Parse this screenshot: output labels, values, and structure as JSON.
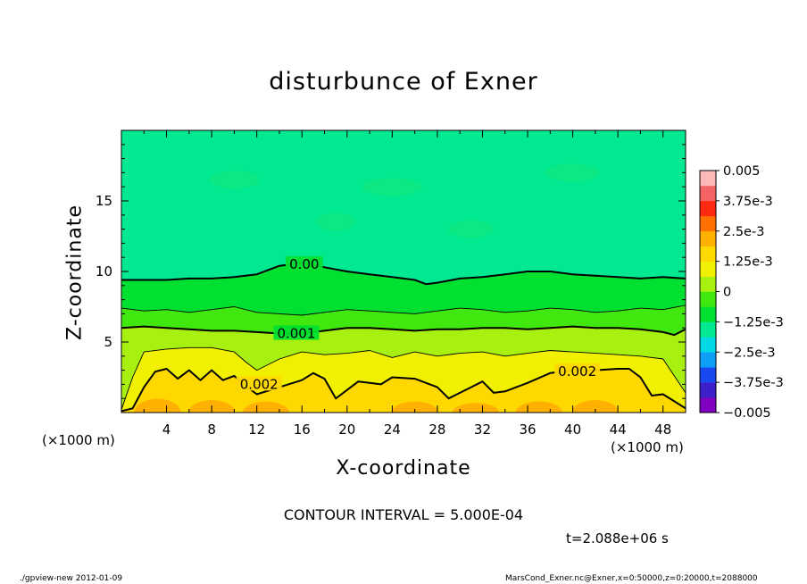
{
  "title": "disturbunce of Exner",
  "xlabel": "X-coordinate",
  "ylabel": "Z-coordinate",
  "x_unit_left": "(×1000 m)",
  "x_unit_right": "(×1000 m)",
  "contour_interval": "CONTOUR INTERVAL = 5.000E-04",
  "time_label": "t=2.088e+06 s",
  "footer_left": "./gpview-new   2012-01-09",
  "footer_right": "MarsCond_Exner.nc@Exner,x=0:50000,z=0:20000,t=2088000",
  "colors": {
    "level_colors": [
      "#7f00c0",
      "#3c1fc8",
      "#1848f0",
      "#0ea0f8",
      "#00d8e4",
      "#00e890",
      "#00e030",
      "#40e810",
      "#a8f010",
      "#f0f000",
      "#ffd800",
      "#ffb000",
      "#ff7000",
      "#ff2810",
      "#f46464",
      "#ffb8b8"
    ],
    "contour_line": "#000000"
  },
  "chart_data": {
    "type": "contour",
    "title": "disturbunce of Exner",
    "xlabel": "X-coordinate",
    "ylabel": "Z-coordinate",
    "xlim": [
      0,
      50
    ],
    "ylim": [
      0,
      20
    ],
    "x_ticks": [
      4,
      8,
      12,
      16,
      20,
      24,
      28,
      32,
      36,
      40,
      44,
      48
    ],
    "y_ticks": [
      5,
      10,
      15
    ],
    "colorbar": {
      "range": [
        -0.005,
        0.005
      ],
      "labels": [
        "0.005",
        "3.75e-3",
        "2.5e-3",
        "1.25e-3",
        "0",
        "−1.25e-3",
        "−2.5e-3",
        "−3.75e-3",
        "−0.005"
      ],
      "label_values": [
        0.005,
        0.00375,
        0.0025,
        0.00125,
        0,
        -0.00125,
        -0.0025,
        -0.00375,
        -0.005
      ]
    },
    "contour_levels": [
      0,
      0.0005,
      0.001,
      0.0015,
      0.002,
      0.0025
    ],
    "labeled_contours": [
      {
        "label": "0.00",
        "value": 0,
        "x": 16.2,
        "z": 10.5
      },
      {
        "label": "0.001",
        "value": 0.001,
        "x": 15.5,
        "z": 5.6
      },
      {
        "label": "0.002",
        "value": 0.002,
        "x": 12.2,
        "z": 2.0
      },
      {
        "label": "0.002",
        "value": 0.002,
        "x": 40.4,
        "z": 2.9
      }
    ],
    "contour_profiles": [
      {
        "level": 0,
        "style": "bold",
        "x": [
          0,
          2,
          4,
          6,
          8,
          10,
          12,
          13,
          14,
          16,
          18,
          20,
          22,
          24,
          26,
          27,
          28,
          30,
          32,
          34,
          36,
          38,
          40,
          42,
          44,
          46,
          48,
          50
        ],
        "z": [
          9.4,
          9.4,
          9.4,
          9.5,
          9.5,
          9.6,
          9.8,
          10.1,
          10.4,
          10.6,
          10.3,
          10.0,
          9.8,
          9.6,
          9.4,
          9.1,
          9.2,
          9.5,
          9.6,
          9.8,
          10.0,
          10.0,
          9.8,
          9.7,
          9.6,
          9.5,
          9.6,
          9.5
        ]
      },
      {
        "level": 0.0005,
        "style": "thin",
        "x": [
          0,
          2,
          4,
          6,
          8,
          10,
          12,
          14,
          16,
          18,
          20,
          22,
          24,
          26,
          28,
          30,
          32,
          34,
          36,
          38,
          40,
          42,
          44,
          46,
          48,
          50
        ],
        "z": [
          7.4,
          7.2,
          7.3,
          7.1,
          7.3,
          7.5,
          7.1,
          7.0,
          6.9,
          7.1,
          7.3,
          7.2,
          7.1,
          7.0,
          7.2,
          7.4,
          7.3,
          7.1,
          7.2,
          7.4,
          7.3,
          7.1,
          7.2,
          7.4,
          7.3,
          7.6
        ]
      },
      {
        "level": 0.001,
        "style": "bold",
        "x": [
          0,
          2,
          4,
          6,
          8,
          10,
          12,
          14,
          16,
          18,
          20,
          22,
          24,
          26,
          28,
          30,
          32,
          34,
          36,
          38,
          40,
          42,
          44,
          46,
          48,
          49,
          50
        ],
        "z": [
          6.0,
          6.1,
          6.0,
          5.9,
          5.8,
          5.8,
          5.7,
          5.6,
          5.6,
          5.8,
          6.0,
          6.0,
          5.9,
          5.8,
          5.9,
          5.9,
          6.0,
          6.0,
          5.9,
          6.0,
          6.1,
          6.0,
          6.0,
          5.9,
          5.7,
          5.5,
          5.9
        ]
      },
      {
        "level": 0.0015,
        "style": "thin",
        "x": [
          0,
          1,
          2,
          4,
          6,
          8,
          10,
          11,
          12,
          14,
          16,
          18,
          20,
          22,
          24,
          26,
          28,
          30,
          32,
          34,
          36,
          38,
          40,
          42,
          44,
          46,
          48,
          50
        ],
        "z": [
          0.2,
          2.5,
          4.3,
          4.5,
          4.6,
          4.6,
          4.3,
          3.6,
          3.0,
          3.8,
          4.3,
          4.1,
          4.2,
          4.4,
          3.9,
          4.3,
          4.0,
          4.2,
          4.3,
          4.0,
          4.2,
          4.4,
          4.3,
          4.2,
          4.1,
          4.0,
          3.8,
          1.4
        ]
      },
      {
        "level": 0.002,
        "style": "bold",
        "x": [
          0,
          1,
          2,
          3,
          4,
          5,
          6,
          7,
          8,
          9,
          10,
          11,
          12,
          14,
          16,
          17,
          18,
          19,
          20,
          21,
          22,
          23,
          24,
          26,
          28,
          29,
          30,
          31,
          32,
          33,
          34,
          36,
          38,
          40,
          42,
          44,
          45,
          46,
          47,
          48,
          49,
          50
        ],
        "z": [
          0.1,
          0.3,
          1.8,
          2.9,
          3.1,
          2.4,
          3.0,
          2.3,
          3.0,
          2.3,
          2.6,
          1.9,
          1.3,
          1.8,
          2.3,
          2.8,
          2.4,
          1.0,
          1.6,
          2.2,
          2.1,
          2.0,
          2.5,
          2.4,
          1.8,
          1.0,
          1.4,
          1.8,
          2.2,
          1.4,
          1.5,
          2.1,
          2.8,
          3.0,
          3.0,
          3.1,
          3.1,
          2.5,
          1.2,
          1.3,
          0.8,
          0.3
        ]
      }
    ]
  }
}
